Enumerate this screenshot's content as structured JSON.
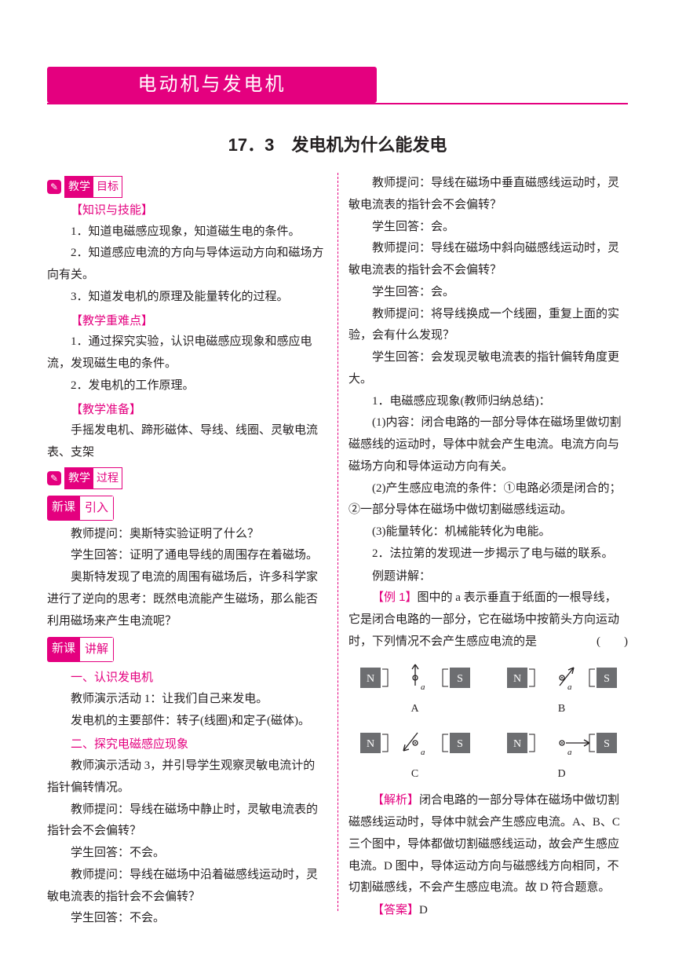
{
  "colors": {
    "accent": "#e4007f",
    "text": "#231f20",
    "background": "#ffffff"
  },
  "chapter_title": "电动机与发电机",
  "section_title": "17．3　发电机为什么能发电",
  "badges": {
    "obj_a": "教学",
    "obj_b": "目标",
    "proc_a": "教学",
    "proc_b": "过程",
    "intro_a": "新课",
    "intro_b": "引入",
    "explain_a": "新课",
    "explain_b": "讲解",
    "icon_glyph": "✎"
  },
  "headers": {
    "knowledge": "【知识与技能】",
    "keypoints": "【教学重难点】",
    "prep": "【教学准备】",
    "s1": "一、认识发电机",
    "s2": "二、探究电磁感应现象",
    "ex_title": "例题讲解：",
    "ex1": "【例 1】",
    "analysis": "【解析】",
    "answer_label": "【答案】",
    "answer_value": "D"
  },
  "left": {
    "k1": "1．知道电磁感应现象，知道磁生电的条件。",
    "k2": "2．知道感应电流的方向与导体运动方向和磁场方向有关。",
    "k3": "3．知道发电机的原理及能量转化的过程。",
    "d1": "1．通过探究实验，认识电磁感应现象和感应电流，发现磁生电的条件。",
    "d2": "2．发电机的工作原理。",
    "prep": "手摇发电机、蹄形磁体、导线、线圈、灵敏电流表、支架",
    "intro1": "教师提问：奥斯特实验证明了什么？",
    "intro2": "学生回答：证明了通电导线的周围存在着磁场。",
    "intro3": "奥斯特发现了电流的周围有磁场后，许多科学家进行了逆向的思考：既然电流能产生磁场，那么能否利用磁场来产生电流呢？",
    "s1a": "教师演示活动 1：让我们自己来发电。",
    "s1b": "发电机的主要部件：转子(线圈)和定子(磁体)。",
    "s2a": "教师演示活动 3，并引导学生观察灵敏电流计的指针偏转情况。",
    "q1": "教师提问：导线在磁场中静止时，灵敏电流表的指针会不会偏转？",
    "a1": "学生回答：不会。",
    "q2": "教师提问：导线在磁场中沿着磁感线运动时，灵敏电流表的指针会不会偏转？",
    "a2": "学生回答：不会。"
  },
  "right": {
    "q3": "教师提问：导线在磁场中垂直磁感线运动时，灵敏电流表的指针会不会偏转？",
    "a3": "学生回答：会。",
    "q4": "教师提问：导线在磁场中斜向磁感线运动时，灵敏电流表的指针会不会偏转？",
    "a4": "学生回答：会。",
    "q5": "教师提问：将导线换成一个线圈，重复上面的实验，会有什么发现？",
    "a5": "学生回答：会发现灵敏电流表的指针偏转角度更大。",
    "sum1": "1．电磁感应现象(教师归纳总结)：",
    "sum1a": "(1)内容：闭合电路的一部分导体在磁场里做切割磁感线的运动时，导体中就会产生电流。电流方向与磁场方向和导体运动方向有关。",
    "sum1b": "(2)产生感应电流的条件：①电路必须是闭合的；②一部分导体在磁场中做切割磁感线运动。",
    "sum1c": "(3)能量转化：机械能转化为电能。",
    "sum2": "2．法拉第的发现进一步揭示了电与磁的联系。",
    "ex_body": "图中的 a 表示垂直于纸面的一根导线，它是闭合电路的一部分，它在磁场中按箭头方向运动时，下列情况不会产生感应电流的是",
    "paren": "(　　)",
    "analysis_body": "闭合电路的一部分导体在磁场中做切割磁感线运动时，导体中就会产生感应电流。A、B、C 三个图中，导体都做切割磁感线运动，故会产生感应电流。D 图中，导体运动方向与磁感线方向相同，不切割磁感线，不会产生感应电流。故 D 符合题意。"
  },
  "options": {
    "labels": [
      "A",
      "B",
      "C",
      "D"
    ],
    "arrows": [
      "up",
      "upright",
      "downleft",
      "right"
    ],
    "N": "N",
    "S": "S",
    "a": "a",
    "box_fill": "#6d6e71",
    "box_text": "#ffffff",
    "stroke": "#231f20"
  }
}
